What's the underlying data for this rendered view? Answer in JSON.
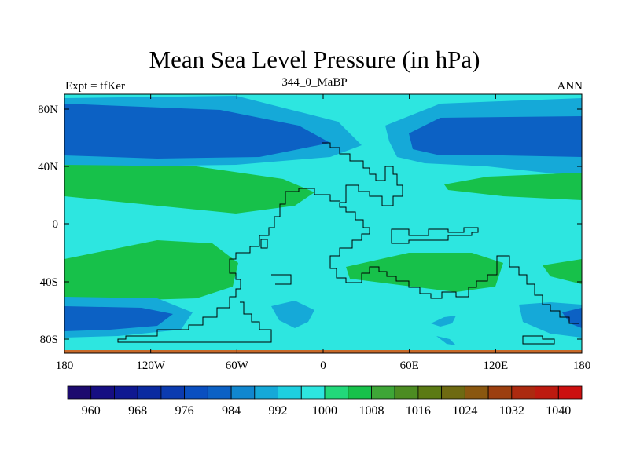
{
  "title": "Mean Sea Level Pressure (in hPa)",
  "subtitle_left": "Expt = tfKer",
  "subtitle_center": "344_0_MaBP",
  "subtitle_right": "ANN",
  "x_ticks": [
    "180",
    "120W",
    "60W",
    "0",
    "60E",
    "120E",
    "180"
  ],
  "y_ticks": [
    "80N",
    "40N",
    "0",
    "40S",
    "80S"
  ],
  "colorbar": {
    "colors": [
      "#1c0a6e",
      "#160e82",
      "#0f1891",
      "#0a2aa0",
      "#0b3bb0",
      "#0a4fc0",
      "#0c61c4",
      "#1187cf",
      "#15a9d8",
      "#1ecfe0",
      "#2de6e0",
      "#22d87a",
      "#17c14a",
      "#3ea637",
      "#4c8c22",
      "#5b7a14",
      "#6e6a12",
      "#8a5710",
      "#9c3f10",
      "#ac2a10",
      "#bd1a10",
      "#cc1010"
    ],
    "labels": [
      "960",
      "968",
      "976",
      "984",
      "992",
      "1000",
      "1008",
      "1016",
      "1024",
      "1032",
      "1040"
    ]
  },
  "colors": {
    "background_field": "#2de6e0",
    "band_992": "#15a9d8",
    "band_984": "#0c61c4",
    "band_1008": "#17c14a"
  }
}
